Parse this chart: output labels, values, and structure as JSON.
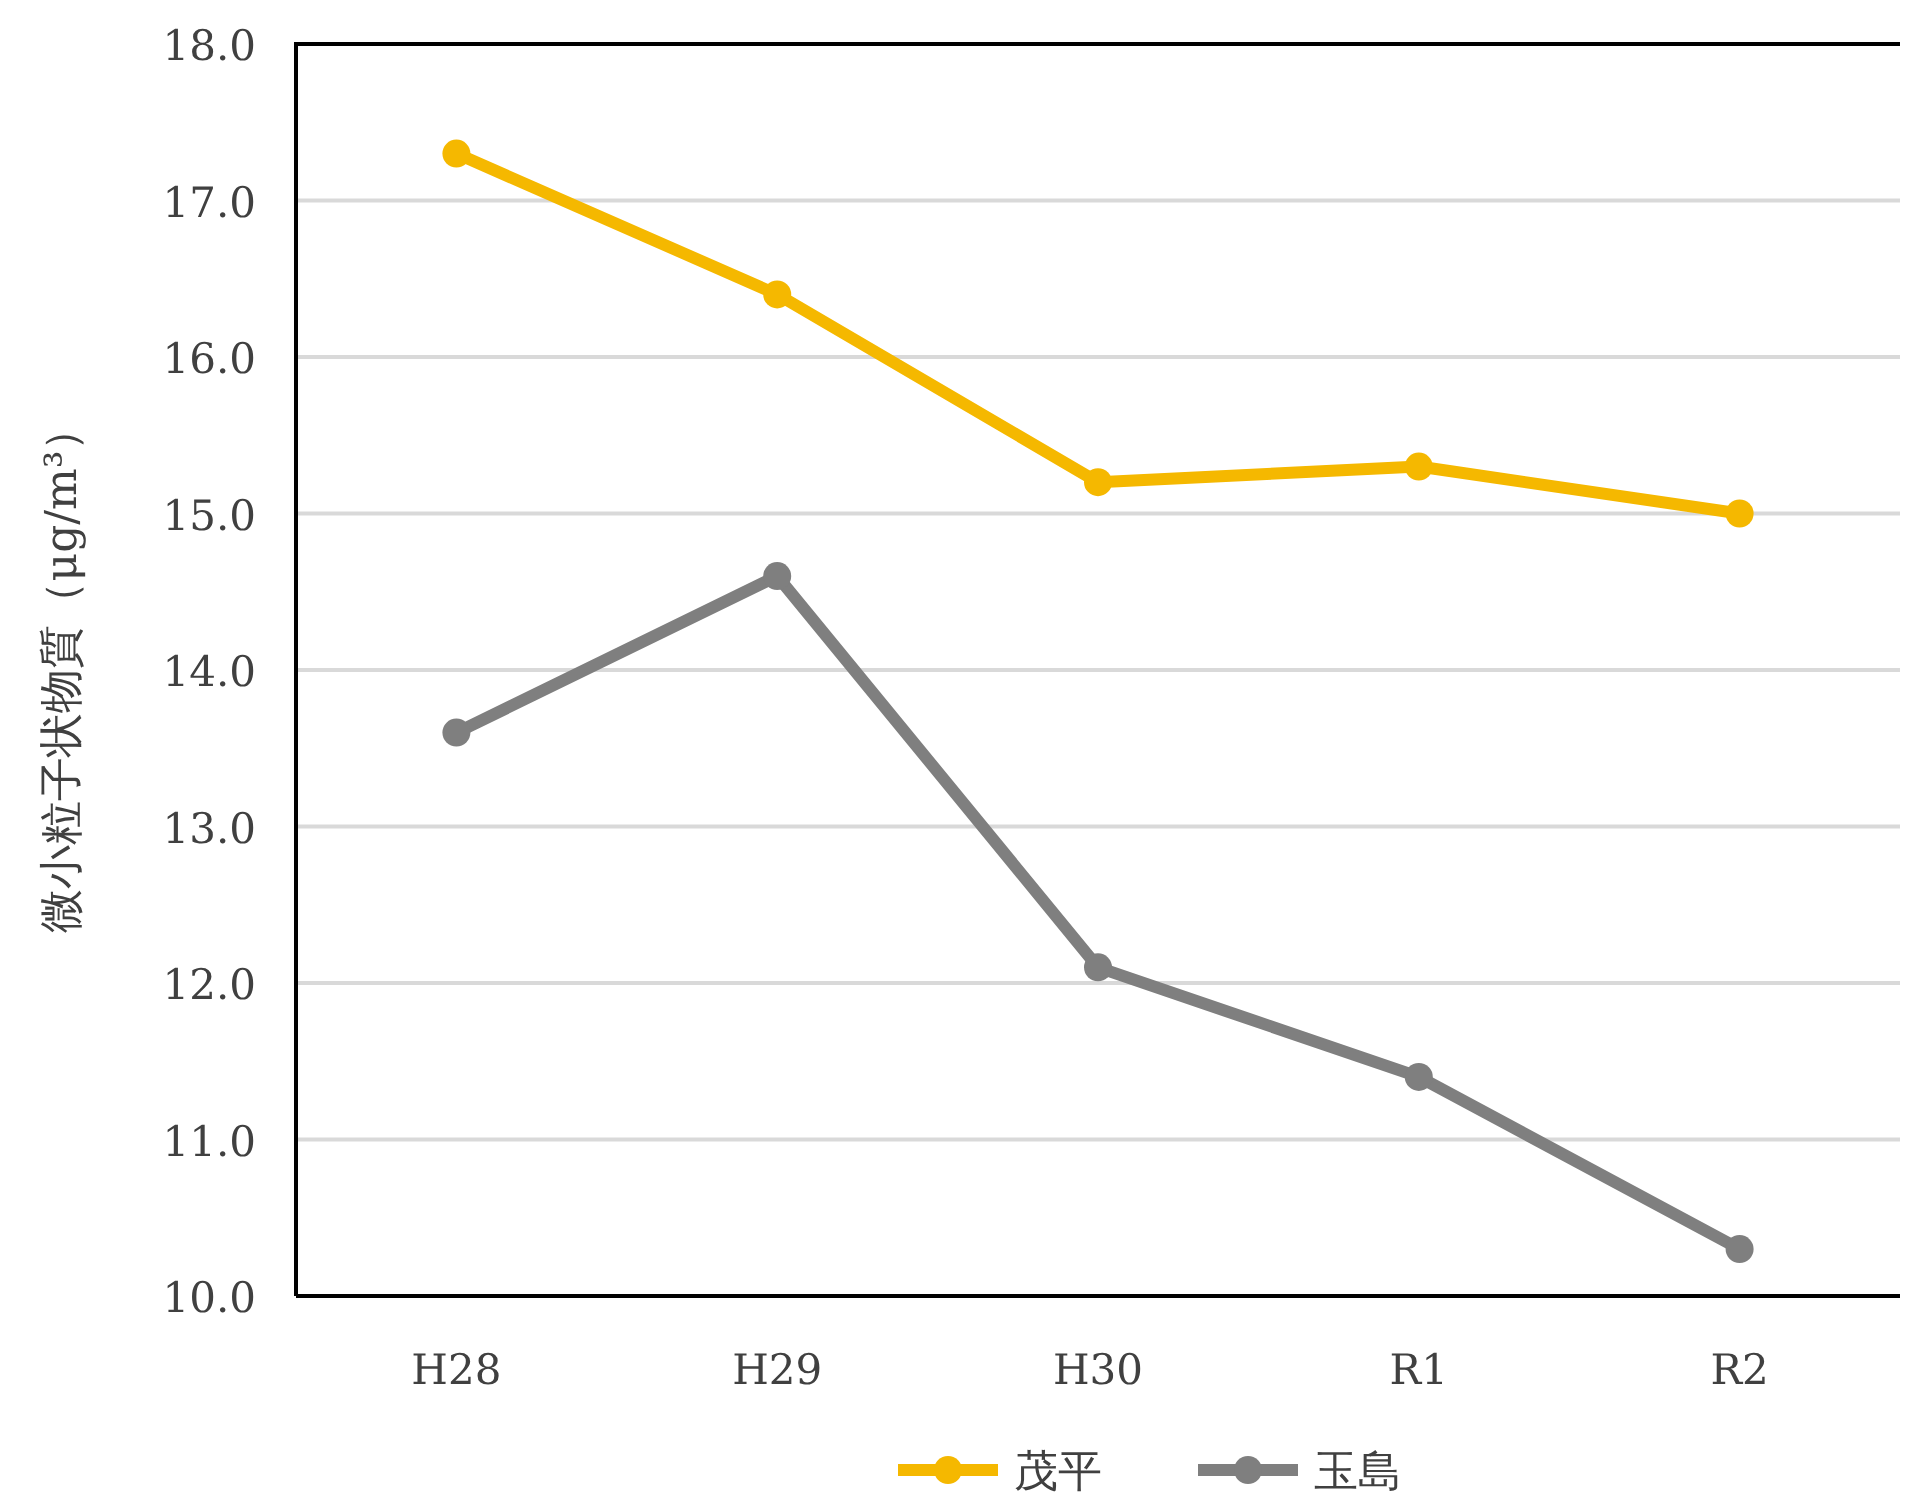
{
  "chart_data": {
    "type": "line",
    "ylabel": "微小粒子状物質（μg/m³）",
    "categories": [
      "H28",
      "H29",
      "H30",
      "R1",
      "R2"
    ],
    "series": [
      {
        "name": "茂平",
        "color": "#f5b800",
        "values": [
          17.3,
          16.4,
          15.2,
          15.3,
          15.0
        ]
      },
      {
        "name": "玉島",
        "color": "#7f7f7f",
        "values": [
          13.6,
          14.6,
          12.1,
          11.4,
          10.3
        ]
      }
    ],
    "ylim": [
      10,
      18
    ],
    "yticks": [
      {
        "value": 10,
        "label": "10.0"
      },
      {
        "value": 11,
        "label": "11.0"
      },
      {
        "value": 12,
        "label": "12.0"
      },
      {
        "value": 13,
        "label": "13.0"
      },
      {
        "value": 14,
        "label": "14.0"
      },
      {
        "value": 15,
        "label": "15.0"
      },
      {
        "value": 16,
        "label": "16.0"
      },
      {
        "value": 17,
        "label": "17.0"
      },
      {
        "value": 18,
        "label": "18.0"
      }
    ],
    "grid": "y",
    "legend": "bottom",
    "marker": "circle"
  }
}
